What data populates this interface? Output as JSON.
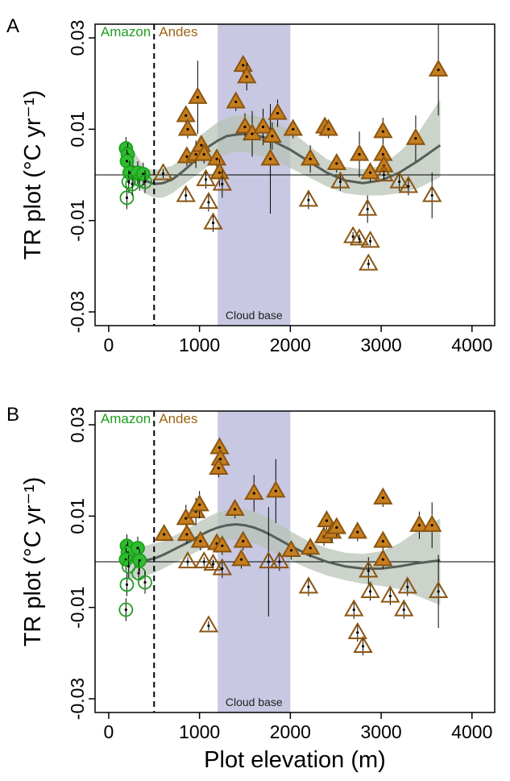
{
  "chart_data": [
    {
      "panel": "A",
      "type": "scatter",
      "ylabel": "TR plot (°C yr⁻¹)",
      "xlabel": "",
      "xlim": [
        -150,
        4250
      ],
      "ylim": [
        -0.033,
        0.033
      ],
      "xticks": [
        "0",
        "1000",
        "2000",
        "3000",
        "4000"
      ],
      "yticks": [
        "-0.03",
        "-0.01",
        "0.01",
        "0.03"
      ],
      "region_labels": {
        "amazon": "Amazon",
        "andes": "Andes",
        "amazon_color": "#1f9e1f",
        "andes_color": "#9c6515"
      },
      "shaded_band": {
        "label": "Cloud base",
        "x": [
          1200,
          2000
        ],
        "color": "#c8c8e2"
      },
      "reference_line_x": 500,
      "zero_line_y": 0,
      "trend": {
        "x": [
          200,
          300,
          400,
          500,
          600,
          700,
          800,
          900,
          1000,
          1100,
          1200,
          1300,
          1400,
          1500,
          1600,
          1700,
          1800,
          1900,
          2000,
          2200,
          2400,
          2600,
          2800,
          3000,
          3200,
          3400,
          3650
        ],
        "y": [
          0.0035,
          0.0012,
          -0.0012,
          -0.002,
          -0.0018,
          -0.001,
          0.0005,
          0.0022,
          0.0045,
          0.0062,
          0.0075,
          0.0085,
          0.0088,
          0.009,
          0.0087,
          0.0083,
          0.0075,
          0.0065,
          0.0055,
          0.003,
          0.0005,
          -0.0012,
          -0.0018,
          -0.0012,
          0.0005,
          0.003,
          0.0065
        ],
        "lower": [
          -0.0005,
          -0.002,
          -0.004,
          -0.005,
          -0.005,
          -0.004,
          -0.0025,
          -0.001,
          0.0005,
          0.002,
          0.0035,
          0.0045,
          0.005,
          0.005,
          0.0045,
          0.004,
          0.0035,
          0.0025,
          0.0015,
          -0.0005,
          -0.0025,
          -0.004,
          -0.0045,
          -0.0045,
          -0.004,
          -0.003,
          -0.0005
        ],
        "upper": [
          0.0075,
          0.0045,
          0.0015,
          0.001,
          0.0015,
          0.002,
          0.0035,
          0.005,
          0.0085,
          0.01,
          0.0115,
          0.0125,
          0.013,
          0.0132,
          0.013,
          0.0126,
          0.0118,
          0.0108,
          0.0097,
          0.0065,
          0.0035,
          0.0018,
          0.0012,
          0.002,
          0.005,
          0.009,
          0.0165
        ]
      },
      "amazon_points": [
        {
          "x": 190,
          "y": 0.0058,
          "filled": true
        },
        {
          "x": 210,
          "y": 0.0045,
          "filled": true
        },
        {
          "x": 200,
          "y": 0.003,
          "filled": true
        },
        {
          "x": 230,
          "y": 0.0005,
          "filled": true
        },
        {
          "x": 220,
          "y": -0.0015,
          "filled": false
        },
        {
          "x": 200,
          "y": -0.005,
          "filled": false
        },
        {
          "x": 260,
          "y": -0.002,
          "filled": false
        },
        {
          "x": 320,
          "y": 0.0005,
          "filled": true
        },
        {
          "x": 340,
          "y": -0.001,
          "filled": false
        },
        {
          "x": 380,
          "y": 0.0002,
          "filled": true
        },
        {
          "x": 400,
          "y": -0.0015,
          "filled": false
        }
      ],
      "andes_points": [
        {
          "x": 600,
          "y": 0.0003,
          "filled": false,
          "err": 0.001
        },
        {
          "x": 850,
          "y": 0.013,
          "filled": true,
          "err": 0.002
        },
        {
          "x": 870,
          "y": 0.01,
          "filled": true,
          "err": 0.002
        },
        {
          "x": 860,
          "y": 0.004,
          "filled": true,
          "err": 0.002
        },
        {
          "x": 850,
          "y": -0.0045,
          "filled": false,
          "err": 0.0015
        },
        {
          "x": 960,
          "y": 0.0045,
          "filled": true,
          "err": 0.003
        },
        {
          "x": 980,
          "y": 0.017,
          "filled": true,
          "err": 0.008
        },
        {
          "x": 1020,
          "y": 0.0065,
          "filled": true,
          "err": 0.002
        },
        {
          "x": 1050,
          "y": 0.0045,
          "filled": true,
          "err": 0.002
        },
        {
          "x": 1070,
          "y": -0.001,
          "filled": false,
          "err": 0.002
        },
        {
          "x": 1100,
          "y": -0.006,
          "filled": false,
          "err": 0.002
        },
        {
          "x": 1150,
          "y": -0.0105,
          "filled": false,
          "err": 0.002
        },
        {
          "x": 1190,
          "y": 0.0035,
          "filled": true,
          "err": 0.002
        },
        {
          "x": 1220,
          "y": 0.0005,
          "filled": true,
          "err": 0.003
        },
        {
          "x": 1250,
          "y": -0.002,
          "filled": false,
          "err": 0.003
        },
        {
          "x": 1400,
          "y": 0.016,
          "filled": true,
          "err": 0.002
        },
        {
          "x": 1480,
          "y": 0.024,
          "filled": true,
          "err": 0.002
        },
        {
          "x": 1520,
          "y": 0.0215,
          "filled": true,
          "err": 0.003
        },
        {
          "x": 1500,
          "y": 0.0105,
          "filled": true,
          "err": 0.003
        },
        {
          "x": 1580,
          "y": 0.009,
          "filled": true,
          "err": 0.005
        },
        {
          "x": 1700,
          "y": 0.0105,
          "filled": true,
          "err": 0.004
        },
        {
          "x": 1780,
          "y": 0.0035,
          "filled": true,
          "err": 0.012
        },
        {
          "x": 1800,
          "y": 0.0085,
          "filled": true,
          "err": 0.003
        },
        {
          "x": 1860,
          "y": 0.0135,
          "filled": true,
          "err": 0.003
        },
        {
          "x": 2030,
          "y": 0.01,
          "filled": true,
          "err": 0.002
        },
        {
          "x": 2220,
          "y": 0.0035,
          "filled": true,
          "err": 0.003
        },
        {
          "x": 2200,
          "y": -0.0055,
          "filled": false,
          "err": 0.002
        },
        {
          "x": 2380,
          "y": 0.0105,
          "filled": true,
          "err": 0.002
        },
        {
          "x": 2420,
          "y": 0.01,
          "filled": true,
          "err": 0.002
        },
        {
          "x": 2510,
          "y": 0.0025,
          "filled": true,
          "err": 0.002
        },
        {
          "x": 2550,
          "y": -0.0015,
          "filled": false,
          "err": 0.002
        },
        {
          "x": 2690,
          "y": -0.0135,
          "filled": false,
          "err": 0.001
        },
        {
          "x": 2760,
          "y": 0.0045,
          "filled": true,
          "err": 0.005
        },
        {
          "x": 2760,
          "y": -0.014,
          "filled": false,
          "err": 0.001
        },
        {
          "x": 2850,
          "y": -0.0075,
          "filled": false,
          "err": 0.003
        },
        {
          "x": 2860,
          "y": -0.0195,
          "filled": false,
          "err": 0.001
        },
        {
          "x": 2880,
          "y": -0.0145,
          "filled": false,
          "err": 0.001
        },
        {
          "x": 2880,
          "y": 0.0005,
          "filled": true,
          "err": 0.002
        },
        {
          "x": 3020,
          "y": 0.0095,
          "filled": true,
          "err": 0.003
        },
        {
          "x": 3020,
          "y": 0.0045,
          "filled": true,
          "err": 0.002
        },
        {
          "x": 3030,
          "y": 0.002,
          "filled": true,
          "err": 0.002
        },
        {
          "x": 3030,
          "y": 0.0,
          "filled": false,
          "err": 0.001
        },
        {
          "x": 3200,
          "y": -0.0015,
          "filled": false,
          "err": 0.002
        },
        {
          "x": 3300,
          "y": -0.0025,
          "filled": false,
          "err": 0.002
        },
        {
          "x": 3380,
          "y": 0.008,
          "filled": true,
          "err": 0.005
        },
        {
          "x": 3560,
          "y": -0.0045,
          "filled": false,
          "err": 0.005
        },
        {
          "x": 3630,
          "y": 0.023,
          "filled": true,
          "err": 0.01
        }
      ]
    },
    {
      "panel": "B",
      "type": "scatter",
      "ylabel": "TR plot (°C yr⁻¹)",
      "xlabel": "Plot elevation (m)",
      "xlim": [
        -150,
        4250
      ],
      "ylim": [
        -0.033,
        0.033
      ],
      "xticks": [
        "0",
        "1000",
        "2000",
        "3000",
        "4000"
      ],
      "yticks": [
        "-0.03",
        "-0.01",
        "0.01",
        "0.03"
      ],
      "region_labels": {
        "amazon": "Amazon",
        "andes": "Andes",
        "amazon_color": "#1f9e1f",
        "andes_color": "#9c6515"
      },
      "shaded_band": {
        "label": "Cloud base",
        "x": [
          1200,
          2000
        ],
        "color": "#c8c8e2"
      },
      "reference_line_x": 500,
      "zero_line_y": 0,
      "trend": {
        "x": [
          200,
          300,
          400,
          500,
          600,
          700,
          800,
          900,
          1000,
          1100,
          1200,
          1300,
          1400,
          1500,
          1600,
          1700,
          1800,
          1900,
          2000,
          2200,
          2400,
          2600,
          2800,
          3000,
          3200,
          3400,
          3650
        ],
        "y": [
          0.0005,
          0.0003,
          0.0003,
          0.0007,
          0.0015,
          0.0025,
          0.0035,
          0.0045,
          0.0057,
          0.0067,
          0.0075,
          0.008,
          0.0082,
          0.008,
          0.0075,
          0.0067,
          0.0057,
          0.0046,
          0.0035,
          0.0015,
          0.0,
          -0.001,
          -0.0015,
          -0.0015,
          -0.001,
          -0.0003,
          0.0003
        ],
        "lower": [
          -0.004,
          -0.0035,
          -0.003,
          -0.0025,
          -0.0015,
          -0.0005,
          0.0005,
          0.0015,
          0.0025,
          0.0035,
          0.0042,
          0.0047,
          0.0048,
          0.0045,
          0.004,
          0.0032,
          0.0022,
          0.0012,
          0.0003,
          -0.0015,
          -0.003,
          -0.004,
          -0.0048,
          -0.0053,
          -0.006,
          -0.0075,
          -0.0095
        ],
        "upper": [
          0.005,
          0.004,
          0.0035,
          0.004,
          0.0045,
          0.0055,
          0.0065,
          0.0076,
          0.0088,
          0.0099,
          0.0108,
          0.0113,
          0.0116,
          0.0115,
          0.011,
          0.0102,
          0.0092,
          0.008,
          0.0067,
          0.0045,
          0.003,
          0.002,
          0.0017,
          0.0023,
          0.004,
          0.0068,
          0.0095
        ]
      },
      "amazon_points": [
        {
          "x": 200,
          "y": 0.0035,
          "filled": true
        },
        {
          "x": 210,
          "y": 0.002,
          "filled": true
        },
        {
          "x": 190,
          "y": 0.0005,
          "filled": true
        },
        {
          "x": 220,
          "y": -0.001,
          "filled": false
        },
        {
          "x": 200,
          "y": -0.005,
          "filled": false
        },
        {
          "x": 190,
          "y": -0.0105,
          "filled": false
        },
        {
          "x": 320,
          "y": 0.003,
          "filled": true
        },
        {
          "x": 340,
          "y": 0.0003,
          "filled": true
        },
        {
          "x": 330,
          "y": -0.0025,
          "filled": false
        },
        {
          "x": 400,
          "y": -0.0045,
          "filled": false
        }
      ],
      "andes_points": [
        {
          "x": 610,
          "y": 0.006,
          "filled": true,
          "err": 0.001
        },
        {
          "x": 850,
          "y": 0.0095,
          "filled": true,
          "err": 0.003
        },
        {
          "x": 860,
          "y": 0.006,
          "filled": true,
          "err": 0.002
        },
        {
          "x": 870,
          "y": 0.0,
          "filled": false,
          "err": 0.001
        },
        {
          "x": 960,
          "y": 0.011,
          "filled": true,
          "err": 0.003
        },
        {
          "x": 1000,
          "y": 0.0125,
          "filled": true,
          "err": 0.003
        },
        {
          "x": 1010,
          "y": 0.0045,
          "filled": true,
          "err": 0.002
        },
        {
          "x": 1050,
          "y": 0.0,
          "filled": false,
          "err": 0.001
        },
        {
          "x": 1100,
          "y": -0.014,
          "filled": false,
          "err": 0.001
        },
        {
          "x": 1150,
          "y": -0.0005,
          "filled": false,
          "err": 0.001
        },
        {
          "x": 1190,
          "y": 0.004,
          "filled": true,
          "err": 0.002
        },
        {
          "x": 1220,
          "y": 0.025,
          "filled": true,
          "err": 0.002
        },
        {
          "x": 1230,
          "y": 0.0225,
          "filled": true,
          "err": 0.002
        },
        {
          "x": 1210,
          "y": 0.0205,
          "filled": true,
          "err": 0.002
        },
        {
          "x": 1250,
          "y": 0.0035,
          "filled": true,
          "err": 0.002
        },
        {
          "x": 1250,
          "y": -0.0015,
          "filled": false,
          "err": 0.002
        },
        {
          "x": 1390,
          "y": 0.0115,
          "filled": true,
          "err": 0.002
        },
        {
          "x": 1460,
          "y": 0.0005,
          "filled": true,
          "err": 0.002
        },
        {
          "x": 1480,
          "y": 0.0045,
          "filled": true,
          "err": 0.002
        },
        {
          "x": 1600,
          "y": 0.015,
          "filled": true,
          "err": 0.004
        },
        {
          "x": 1760,
          "y": 0.0,
          "filled": false,
          "err": 0.012
        },
        {
          "x": 1840,
          "y": 0.0155,
          "filled": true,
          "err": 0.007
        },
        {
          "x": 1880,
          "y": 0.0,
          "filled": false,
          "err": 0.002
        },
        {
          "x": 2010,
          "y": 0.0025,
          "filled": true,
          "err": 0.002
        },
        {
          "x": 2200,
          "y": -0.0055,
          "filled": false,
          "err": 0.002
        },
        {
          "x": 2220,
          "y": 0.003,
          "filled": true,
          "err": 0.002
        },
        {
          "x": 2370,
          "y": 0.0055,
          "filled": true,
          "err": 0.002
        },
        {
          "x": 2400,
          "y": 0.009,
          "filled": true,
          "err": 0.002
        },
        {
          "x": 2460,
          "y": 0.0065,
          "filled": true,
          "err": 0.002
        },
        {
          "x": 2510,
          "y": 0.0075,
          "filled": true,
          "err": 0.002
        },
        {
          "x": 2700,
          "y": -0.0105,
          "filled": false,
          "err": 0.002
        },
        {
          "x": 2740,
          "y": 0.0065,
          "filled": true,
          "err": 0.002
        },
        {
          "x": 2740,
          "y": -0.0155,
          "filled": false,
          "err": 0.002
        },
        {
          "x": 2800,
          "y": -0.0185,
          "filled": false,
          "err": 0.002
        },
        {
          "x": 2860,
          "y": -0.002,
          "filled": false,
          "err": 0.003
        },
        {
          "x": 2880,
          "y": -0.0065,
          "filled": false,
          "err": 0.002
        },
        {
          "x": 3020,
          "y": 0.014,
          "filled": true,
          "err": 0.002
        },
        {
          "x": 3020,
          "y": 0.0045,
          "filled": true,
          "err": 0.002
        },
        {
          "x": 3020,
          "y": 0.0005,
          "filled": true,
          "err": 0.002
        },
        {
          "x": 3100,
          "y": -0.0075,
          "filled": false,
          "err": 0.002
        },
        {
          "x": 3250,
          "y": -0.0105,
          "filled": false,
          "err": 0.002
        },
        {
          "x": 3290,
          "y": -0.0055,
          "filled": false,
          "err": 0.002
        },
        {
          "x": 3420,
          "y": 0.008,
          "filled": true,
          "err": 0.003
        },
        {
          "x": 3560,
          "y": 0.008,
          "filled": true,
          "err": 0.005
        },
        {
          "x": 3630,
          "y": -0.0065,
          "filled": false,
          "err": 0.008
        }
      ]
    }
  ]
}
